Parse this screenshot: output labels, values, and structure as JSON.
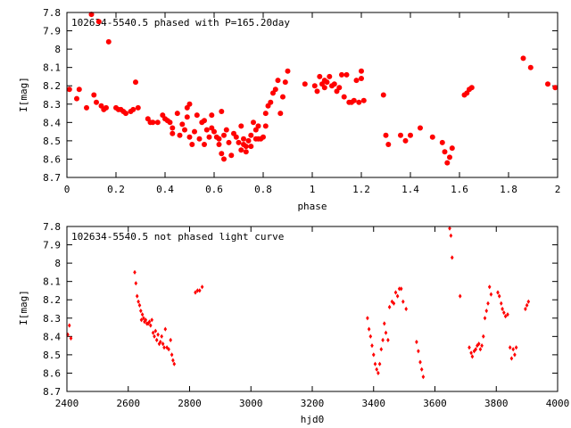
{
  "chart_data": [
    {
      "type": "scatter",
      "title": "102634-5540.5 phased with P=165.20day",
      "xlabel": "phase",
      "ylabel": "I[mag]",
      "xlim": [
        0,
        2
      ],
      "ylim": [
        8.7,
        7.8
      ],
      "y_inverted": true,
      "grid": false,
      "xticks": [
        "0",
        "0.2",
        "0.4",
        "0.6",
        "0.8",
        "1",
        "1.2",
        "1.4",
        "1.6",
        "1.8",
        "2"
      ],
      "yticks": [
        "7.8",
        "7.9",
        "8",
        "8.1",
        "8.2",
        "8.3",
        "8.4",
        "8.5",
        "8.6",
        "8.7"
      ],
      "marker": "filled-circle",
      "series": [
        {
          "color": "#ff0000",
          "points": [
            [
              0.01,
              8.22
            ],
            [
              0.04,
              8.27
            ],
            [
              0.05,
              8.22
            ],
            [
              0.08,
              8.32
            ],
            [
              0.1,
              7.81
            ],
            [
              0.11,
              8.25
            ],
            [
              0.12,
              8.29
            ],
            [
              0.13,
              7.85
            ],
            [
              0.14,
              8.31
            ],
            [
              0.15,
              8.33
            ],
            [
              0.16,
              8.32
            ],
            [
              0.17,
              7.96
            ],
            [
              0.2,
              8.32
            ],
            [
              0.21,
              8.33
            ],
            [
              0.22,
              8.33
            ],
            [
              0.23,
              8.34
            ],
            [
              0.24,
              8.35
            ],
            [
              0.26,
              8.34
            ],
            [
              0.27,
              8.33
            ],
            [
              0.28,
              8.18
            ],
            [
              0.29,
              8.32
            ],
            [
              0.33,
              8.38
            ],
            [
              0.34,
              8.4
            ],
            [
              0.35,
              8.4
            ],
            [
              0.37,
              8.4
            ],
            [
              0.39,
              8.36
            ],
            [
              0.4,
              8.38
            ],
            [
              0.41,
              8.39
            ],
            [
              0.42,
              8.4
            ],
            [
              0.43,
              8.43
            ],
            [
              0.43,
              8.46
            ],
            [
              0.45,
              8.35
            ],
            [
              0.46,
              8.47
            ],
            [
              0.47,
              8.41
            ],
            [
              0.48,
              8.44
            ],
            [
              0.49,
              8.37
            ],
            [
              0.49,
              8.32
            ],
            [
              0.5,
              8.3
            ],
            [
              0.5,
              8.48
            ],
            [
              0.51,
              8.52
            ],
            [
              0.52,
              8.45
            ],
            [
              0.53,
              8.36
            ],
            [
              0.54,
              8.49
            ],
            [
              0.55,
              8.4
            ],
            [
              0.56,
              8.39
            ],
            [
              0.56,
              8.52
            ],
            [
              0.57,
              8.44
            ],
            [
              0.58,
              8.48
            ],
            [
              0.59,
              8.36
            ],
            [
              0.59,
              8.43
            ],
            [
              0.6,
              8.45
            ],
            [
              0.61,
              8.48
            ],
            [
              0.62,
              8.49
            ],
            [
              0.62,
              8.52
            ],
            [
              0.63,
              8.34
            ],
            [
              0.63,
              8.57
            ],
            [
              0.64,
              8.6
            ],
            [
              0.64,
              8.47
            ],
            [
              0.65,
              8.44
            ],
            [
              0.66,
              8.51
            ],
            [
              0.67,
              8.58
            ],
            [
              0.68,
              8.46
            ],
            [
              0.69,
              8.48
            ],
            [
              0.7,
              8.51
            ],
            [
              0.71,
              8.42
            ],
            [
              0.71,
              8.55
            ],
            [
              0.72,
              8.52
            ],
            [
              0.72,
              8.49
            ],
            [
              0.73,
              8.56
            ],
            [
              0.73,
              8.53
            ],
            [
              0.74,
              8.5
            ],
            [
              0.75,
              8.47
            ],
            [
              0.75,
              8.53
            ],
            [
              0.76,
              8.4
            ],
            [
              0.77,
              8.49
            ],
            [
              0.77,
              8.44
            ],
            [
              0.78,
              8.42
            ],
            [
              0.78,
              8.49
            ],
            [
              0.79,
              8.49
            ],
            [
              0.8,
              8.48
            ],
            [
              0.81,
              8.42
            ],
            [
              0.81,
              8.35
            ],
            [
              0.82,
              8.31
            ],
            [
              0.83,
              8.29
            ],
            [
              0.84,
              8.24
            ],
            [
              0.85,
              8.22
            ],
            [
              0.86,
              8.17
            ],
            [
              0.87,
              8.35
            ],
            [
              0.88,
              8.26
            ],
            [
              0.89,
              8.18
            ],
            [
              0.9,
              8.12
            ],
            [
              0.97,
              8.19
            ],
            [
              1.01,
              8.2
            ],
            [
              1.02,
              8.23
            ],
            [
              1.03,
              8.15
            ],
            [
              1.04,
              8.19
            ],
            [
              1.05,
              8.17
            ],
            [
              1.05,
              8.21
            ],
            [
              1.06,
              8.18
            ],
            [
              1.07,
              8.15
            ],
            [
              1.08,
              8.2
            ],
            [
              1.09,
              8.19
            ],
            [
              1.1,
              8.23
            ],
            [
              1.11,
              8.21
            ],
            [
              1.12,
              8.14
            ],
            [
              1.13,
              8.26
            ],
            [
              1.14,
              8.14
            ],
            [
              1.15,
              8.29
            ],
            [
              1.16,
              8.29
            ],
            [
              1.17,
              8.28
            ],
            [
              1.18,
              8.17
            ],
            [
              1.19,
              8.29
            ],
            [
              1.2,
              8.12
            ],
            [
              1.2,
              8.16
            ],
            [
              1.21,
              8.28
            ],
            [
              1.29,
              8.25
            ],
            [
              1.3,
              8.47
            ],
            [
              1.31,
              8.52
            ],
            [
              1.36,
              8.47
            ],
            [
              1.38,
              8.5
            ],
            [
              1.4,
              8.47
            ],
            [
              1.44,
              8.43
            ],
            [
              1.49,
              8.48
            ],
            [
              1.53,
              8.51
            ],
            [
              1.54,
              8.56
            ],
            [
              1.55,
              8.62
            ],
            [
              1.56,
              8.59
            ],
            [
              1.57,
              8.54
            ],
            [
              1.62,
              8.25
            ],
            [
              1.63,
              8.24
            ],
            [
              1.64,
              8.22
            ],
            [
              1.65,
              8.21
            ],
            [
              1.86,
              8.05
            ],
            [
              1.89,
              8.1
            ],
            [
              1.96,
              8.19
            ],
            [
              1.99,
              8.21
            ]
          ]
        }
      ]
    },
    {
      "type": "scatter",
      "title": "102634-5540.5 not phased light curve",
      "xlabel": "hjd0",
      "ylabel": "I[mag]",
      "xlim": [
        2400,
        4000
      ],
      "ylim": [
        8.7,
        7.8
      ],
      "y_inverted": true,
      "grid": false,
      "xticks": [
        "2400",
        "2600",
        "2800",
        "3000",
        "3200",
        "3400",
        "3600",
        "3800",
        "4000"
      ],
      "yticks": [
        "7.8",
        "7.9",
        "8",
        "8.1",
        "8.2",
        "8.3",
        "8.4",
        "8.5",
        "8.6",
        "8.7"
      ],
      "marker": "small-diamond",
      "series": [
        {
          "color": "#ff0000",
          "points": [
            [
              2403,
              8.39
            ],
            [
              2408,
              8.34
            ],
            [
              2413,
              8.41
            ],
            [
              2621,
              8.05
            ],
            [
              2625,
              8.11
            ],
            [
              2629,
              8.18
            ],
            [
              2633,
              8.21
            ],
            [
              2637,
              8.23
            ],
            [
              2641,
              8.26
            ],
            [
              2643,
              8.31
            ],
            [
              2646,
              8.28
            ],
            [
              2650,
              8.3
            ],
            [
              2653,
              8.32
            ],
            [
              2657,
              8.31
            ],
            [
              2661,
              8.33
            ],
            [
              2665,
              8.33
            ],
            [
              2669,
              8.32
            ],
            [
              2673,
              8.34
            ],
            [
              2677,
              8.31
            ],
            [
              2681,
              8.38
            ],
            [
              2685,
              8.4
            ],
            [
              2689,
              8.37
            ],
            [
              2693,
              8.42
            ],
            [
              2697,
              8.39
            ],
            [
              2701,
              8.44
            ],
            [
              2705,
              8.43
            ],
            [
              2709,
              8.4
            ],
            [
              2713,
              8.44
            ],
            [
              2717,
              8.46
            ],
            [
              2721,
              8.36
            ],
            [
              2726,
              8.46
            ],
            [
              2732,
              8.47
            ],
            [
              2738,
              8.42
            ],
            [
              2742,
              8.5
            ],
            [
              2746,
              8.53
            ],
            [
              2750,
              8.55
            ],
            [
              2819,
              8.16
            ],
            [
              2826,
              8.15
            ],
            [
              2833,
              8.15
            ],
            [
              2841,
              8.13
            ],
            [
              3380,
              8.3
            ],
            [
              3385,
              8.36
            ],
            [
              3390,
              8.4
            ],
            [
              3395,
              8.45
            ],
            [
              3400,
              8.5
            ],
            [
              3405,
              8.55
            ],
            [
              3410,
              8.58
            ],
            [
              3415,
              8.6
            ],
            [
              3420,
              8.55
            ],
            [
              3425,
              8.47
            ],
            [
              3430,
              8.42
            ],
            [
              3435,
              8.33
            ],
            [
              3440,
              8.38
            ],
            [
              3447,
              8.42
            ],
            [
              3452,
              8.24
            ],
            [
              3460,
              8.21
            ],
            [
              3466,
              8.22
            ],
            [
              3472,
              8.16
            ],
            [
              3478,
              8.18
            ],
            [
              3484,
              8.14
            ],
            [
              3490,
              8.14
            ],
            [
              3496,
              8.21
            ],
            [
              3506,
              8.25
            ],
            [
              3540,
              8.43
            ],
            [
              3546,
              8.48
            ],
            [
              3552,
              8.54
            ],
            [
              3557,
              8.58
            ],
            [
              3562,
              8.62
            ],
            [
              3648,
              7.81
            ],
            [
              3652,
              7.85
            ],
            [
              3656,
              7.97
            ],
            [
              3682,
              8.18
            ],
            [
              3712,
              8.46
            ],
            [
              3718,
              8.49
            ],
            [
              3722,
              8.51
            ],
            [
              3728,
              8.48
            ],
            [
              3733,
              8.47
            ],
            [
              3738,
              8.45
            ],
            [
              3743,
              8.44
            ],
            [
              3748,
              8.47
            ],
            [
              3753,
              8.45
            ],
            [
              3758,
              8.4
            ],
            [
              3763,
              8.3
            ],
            [
              3768,
              8.26
            ],
            [
              3773,
              8.22
            ],
            [
              3778,
              8.13
            ],
            [
              3783,
              8.17
            ],
            [
              3805,
              8.16
            ],
            [
              3810,
              8.18
            ],
            [
              3816,
              8.22
            ],
            [
              3820,
              8.25
            ],
            [
              3825,
              8.27
            ],
            [
              3830,
              8.29
            ],
            [
              3837,
              8.28
            ],
            [
              3845,
              8.46
            ],
            [
              3850,
              8.52
            ],
            [
              3855,
              8.47
            ],
            [
              3860,
              8.5
            ],
            [
              3865,
              8.46
            ],
            [
              3895,
              8.25
            ],
            [
              3900,
              8.23
            ],
            [
              3905,
              8.21
            ]
          ]
        }
      ]
    }
  ]
}
